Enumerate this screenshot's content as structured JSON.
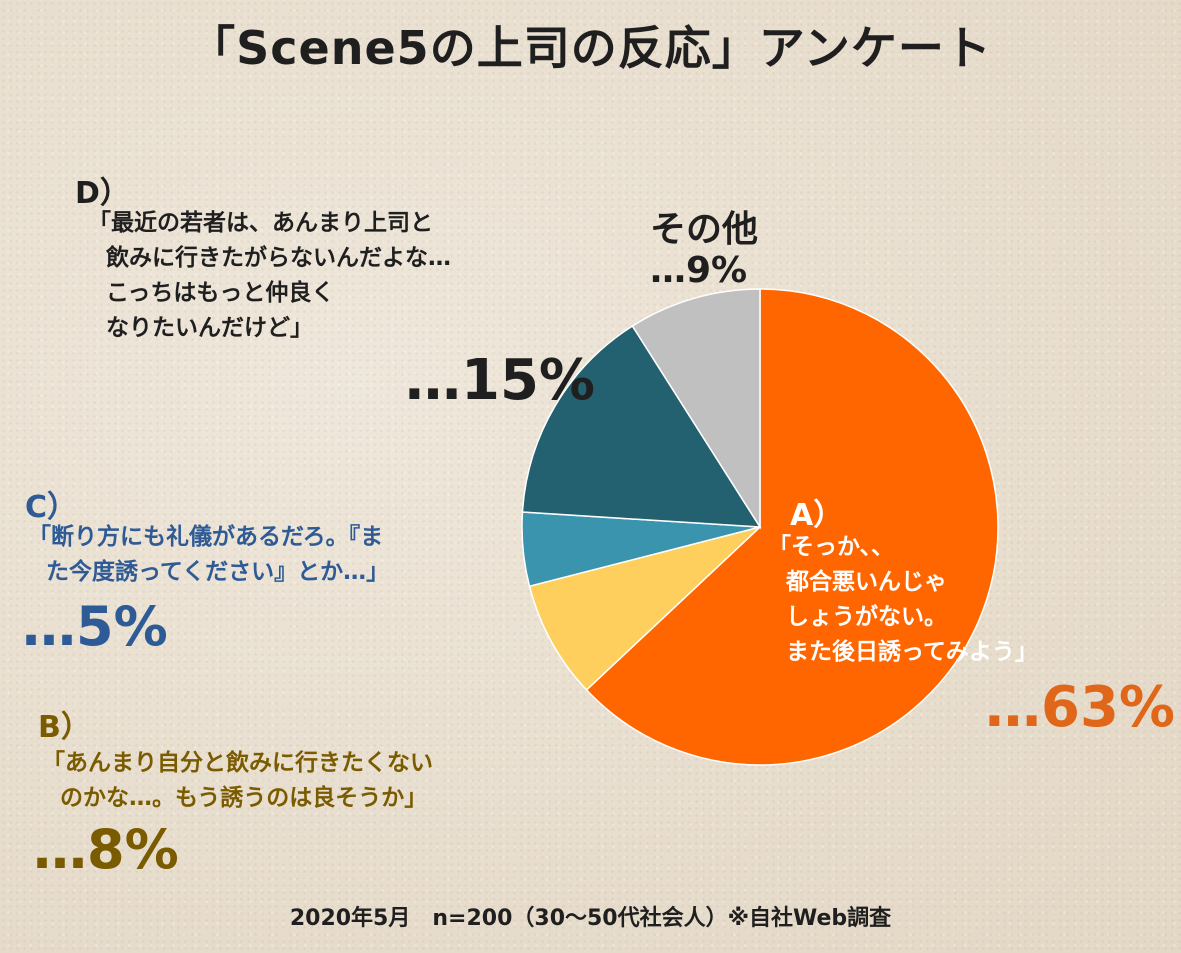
{
  "colors": {
    "A": "#ff6600",
    "B": "#ffcf5e",
    "C": "#3a94ad",
    "D": "#236070",
    "other": "#c0c0c0",
    "text_dark": "#222222",
    "text_A": "#e0661a",
    "text_B": "#7a5b00",
    "text_C": "#2e5a96",
    "text_white": "#ffffff"
  },
  "chart_data": {
    "type": "pie",
    "title": "「Scene5の上司の反応」アンケート",
    "slices": [
      {
        "key": "A",
        "label": "A）",
        "quote": [
          "「そっか、、",
          "都合悪いんじゃ",
          "しょうがない。",
          "また後日誘ってみよう」"
        ],
        "value": 63,
        "pct_text": "…63%",
        "color": "#ff6600"
      },
      {
        "key": "B",
        "label": "B）",
        "quote": [
          "「あんまり自分と飲みに行きたくない",
          "のかな…。もう誘うのは良そうか」"
        ],
        "value": 8,
        "pct_text": "…8%",
        "color": "#ffcf5e"
      },
      {
        "key": "C",
        "label": "C）",
        "quote": [
          "「断り方にも礼儀があるだろ。『ま",
          "た今度誘ってください』とか…」"
        ],
        "value": 5,
        "pct_text": "…5%",
        "color": "#3a94ad"
      },
      {
        "key": "D",
        "label": "D）",
        "quote": [
          "「最近の若者は、あんまり上司と",
          "飲みに行きたがらないんだよな…",
          "こっちはもっと仲良く",
          "なりたいんだけど」"
        ],
        "value": 15,
        "pct_text": "…15%",
        "color": "#236070"
      },
      {
        "key": "other",
        "label": "その他",
        "quote": [],
        "value": 9,
        "pct_text": "…9%",
        "color": "#c0c0c0"
      }
    ],
    "footer": "2020年5月　n=200（30～50代社会人）※自社Web調査"
  }
}
